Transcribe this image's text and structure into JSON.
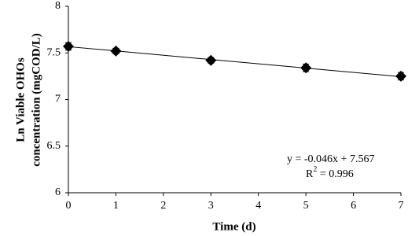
{
  "chart_data": {
    "type": "scatter",
    "x_label": "Time (d)",
    "y_label": [
      "Ln Viable OHOs",
      "concentration (mgCOD/L)"
    ],
    "x": [
      0,
      1,
      3,
      5,
      7
    ],
    "series": [
      {
        "color": "#000000",
        "values": [
          7.57,
          7.52,
          7.42,
          7.34,
          7.25
        ],
        "errors": [
          0.04,
          0.03,
          0.03,
          0.04,
          0.04
        ]
      }
    ],
    "trendline": {
      "slope": -0.046,
      "intercept": 7.567,
      "label": "y = -0.046x + 7.567"
    },
    "r2_label": [
      "R",
      "2",
      " = 0.996"
    ],
    "xlim": [
      0,
      7
    ],
    "xticks": [
      0,
      1,
      2,
      3,
      4,
      5,
      6,
      7
    ],
    "ylim": [
      6,
      8
    ],
    "yticks": [
      6,
      6.5,
      7,
      7.5,
      8
    ],
    "grid": false
  }
}
